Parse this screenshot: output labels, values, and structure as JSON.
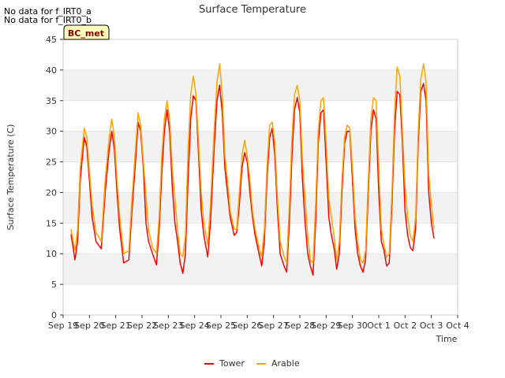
{
  "notes": [
    "No data for f_IRT0_a",
    "No data for f_IRT0_b"
  ],
  "badge": "BC_met",
  "chart_data": {
    "type": "line",
    "title": "Surface Temperature",
    "xlabel": "Time",
    "ylabel": "Surface Temperature (C)",
    "ylim": [
      0,
      45
    ],
    "yticks": [
      0,
      5,
      10,
      15,
      20,
      25,
      30,
      35,
      40,
      45
    ],
    "xlim": [
      0,
      15
    ],
    "xticks": [
      {
        "x": 0,
        "label": "Sep 19"
      },
      {
        "x": 1,
        "label": "Sep 20"
      },
      {
        "x": 2,
        "label": "Sep 21"
      },
      {
        "x": 3,
        "label": "Sep 22"
      },
      {
        "x": 4,
        "label": "Sep 23"
      },
      {
        "x": 5,
        "label": "Sep 24"
      },
      {
        "x": 6,
        "label": "Sep 25"
      },
      {
        "x": 7,
        "label": "Sep 26"
      },
      {
        "x": 8,
        "label": "Sep 27"
      },
      {
        "x": 9,
        "label": "Sep 28"
      },
      {
        "x": 10,
        "label": "Sep 29"
      },
      {
        "x": 11,
        "label": "Sep 30"
      },
      {
        "x": 12,
        "label": "Oct 1"
      },
      {
        "x": 13,
        "label": "Oct 2"
      },
      {
        "x": 14,
        "label": "Oct 3"
      },
      {
        "x": 15,
        "label": "Oct 4"
      }
    ],
    "grid": "horizontal bands",
    "legend": "bottom-center",
    "series": [
      {
        "name": "Tower",
        "color": "#ff0000",
        "points": [
          [
            0.3,
            13.2
          ],
          [
            0.45,
            9.0
          ],
          [
            0.55,
            12.0
          ],
          [
            0.65,
            22.0
          ],
          [
            0.8,
            29.0
          ],
          [
            0.9,
            27.5
          ],
          [
            1.0,
            22.0
          ],
          [
            1.1,
            16.0
          ],
          [
            1.25,
            12.0
          ],
          [
            1.45,
            10.8
          ],
          [
            1.6,
            20.0
          ],
          [
            1.75,
            27.0
          ],
          [
            1.85,
            30.0
          ],
          [
            1.95,
            27.0
          ],
          [
            2.05,
            20.0
          ],
          [
            2.15,
            14.0
          ],
          [
            2.3,
            8.5
          ],
          [
            2.5,
            9.0
          ],
          [
            2.6,
            16.0
          ],
          [
            2.75,
            25.0
          ],
          [
            2.85,
            31.5
          ],
          [
            2.95,
            30.0
          ],
          [
            3.05,
            24.0
          ],
          [
            3.15,
            15.0
          ],
          [
            3.25,
            12.0
          ],
          [
            3.4,
            10.0
          ],
          [
            3.55,
            8.2
          ],
          [
            3.65,
            14.0
          ],
          [
            3.75,
            23.0
          ],
          [
            3.85,
            30.0
          ],
          [
            3.95,
            33.5
          ],
          [
            4.05,
            30.0
          ],
          [
            4.15,
            21.0
          ],
          [
            4.25,
            15.0
          ],
          [
            4.35,
            12.0
          ],
          [
            4.45,
            8.5
          ],
          [
            4.55,
            6.8
          ],
          [
            4.65,
            10.0
          ],
          [
            4.75,
            22.0
          ],
          [
            4.85,
            32.0
          ],
          [
            4.95,
            35.8
          ],
          [
            5.05,
            35.0
          ],
          [
            5.15,
            26.0
          ],
          [
            5.25,
            17.0
          ],
          [
            5.35,
            13.0
          ],
          [
            5.5,
            9.5
          ],
          [
            5.6,
            15.0
          ],
          [
            5.75,
            28.0
          ],
          [
            5.85,
            35.0
          ],
          [
            5.95,
            37.5
          ],
          [
            6.05,
            33.0
          ],
          [
            6.15,
            24.0
          ],
          [
            6.25,
            20.0
          ],
          [
            6.35,
            16.0
          ],
          [
            6.5,
            13.0
          ],
          [
            6.6,
            13.5
          ],
          [
            6.7,
            18.0
          ],
          [
            6.8,
            24.0
          ],
          [
            6.9,
            26.5
          ],
          [
            7.0,
            25.0
          ],
          [
            7.1,
            20.0
          ],
          [
            7.2,
            16.0
          ],
          [
            7.3,
            13.0
          ],
          [
            7.45,
            10.0
          ],
          [
            7.55,
            8.0
          ],
          [
            7.65,
            12.0
          ],
          [
            7.75,
            22.0
          ],
          [
            7.85,
            29.0
          ],
          [
            7.95,
            30.5
          ],
          [
            8.05,
            26.0
          ],
          [
            8.15,
            17.0
          ],
          [
            8.25,
            10.0
          ],
          [
            8.4,
            8.0
          ],
          [
            8.5,
            7.0
          ],
          [
            8.6,
            15.0
          ],
          [
            8.7,
            26.0
          ],
          [
            8.8,
            33.5
          ],
          [
            8.9,
            35.5
          ],
          [
            9.0,
            33.0
          ],
          [
            9.1,
            22.0
          ],
          [
            9.2,
            15.0
          ],
          [
            9.3,
            10.0
          ],
          [
            9.4,
            8.0
          ],
          [
            9.5,
            6.5
          ],
          [
            9.6,
            15.0
          ],
          [
            9.7,
            28.0
          ],
          [
            9.8,
            33.0
          ],
          [
            9.9,
            33.5
          ],
          [
            10.0,
            25.0
          ],
          [
            10.1,
            16.0
          ],
          [
            10.2,
            13.0
          ],
          [
            10.3,
            11.0
          ],
          [
            10.4,
            7.5
          ],
          [
            10.5,
            10.0
          ],
          [
            10.6,
            20.0
          ],
          [
            10.7,
            28.0
          ],
          [
            10.8,
            30.0
          ],
          [
            10.9,
            30.0
          ],
          [
            11.0,
            22.0
          ],
          [
            11.1,
            14.0
          ],
          [
            11.2,
            10.0
          ],
          [
            11.3,
            8.0
          ],
          [
            11.4,
            7.0
          ],
          [
            11.5,
            9.0
          ],
          [
            11.6,
            20.0
          ],
          [
            11.7,
            30.0
          ],
          [
            11.8,
            33.5
          ],
          [
            11.9,
            32.0
          ],
          [
            12.0,
            20.0
          ],
          [
            12.1,
            12.0
          ],
          [
            12.2,
            10.5
          ],
          [
            12.3,
            8.0
          ],
          [
            12.4,
            8.5
          ],
          [
            12.5,
            18.0
          ],
          [
            12.6,
            30.0
          ],
          [
            12.7,
            36.5
          ],
          [
            12.8,
            36.0
          ],
          [
            12.9,
            28.0
          ],
          [
            13.0,
            17.0
          ],
          [
            13.1,
            13.0
          ],
          [
            13.2,
            11.0
          ],
          [
            13.3,
            10.5
          ],
          [
            13.4,
            14.0
          ],
          [
            13.5,
            28.0
          ],
          [
            13.6,
            36.5
          ],
          [
            13.7,
            37.8
          ],
          [
            13.8,
            35.0
          ],
          [
            13.9,
            20.0
          ],
          [
            14.0,
            15.0
          ],
          [
            14.1,
            12.5
          ]
        ]
      },
      {
        "name": "Arable",
        "color": "#ffa500",
        "points": [
          [
            0.3,
            14.0
          ],
          [
            0.45,
            10.5
          ],
          [
            0.55,
            14.0
          ],
          [
            0.65,
            24.0
          ],
          [
            0.8,
            30.5
          ],
          [
            0.9,
            29.0
          ],
          [
            1.0,
            23.5
          ],
          [
            1.1,
            18.0
          ],
          [
            1.25,
            13.5
          ],
          [
            1.45,
            12.0
          ],
          [
            1.6,
            22.0
          ],
          [
            1.75,
            29.0
          ],
          [
            1.85,
            32.0
          ],
          [
            1.95,
            29.0
          ],
          [
            2.05,
            22.0
          ],
          [
            2.15,
            16.0
          ],
          [
            2.3,
            10.0
          ],
          [
            2.5,
            10.5
          ],
          [
            2.6,
            18.0
          ],
          [
            2.75,
            27.0
          ],
          [
            2.85,
            33.0
          ],
          [
            2.95,
            31.0
          ],
          [
            3.05,
            25.0
          ],
          [
            3.15,
            19.5
          ],
          [
            3.25,
            14.0
          ],
          [
            3.4,
            11.0
          ],
          [
            3.55,
            10.0
          ],
          [
            3.65,
            16.0
          ],
          [
            3.75,
            26.0
          ],
          [
            3.85,
            32.0
          ],
          [
            3.95,
            35.0
          ],
          [
            4.05,
            32.0
          ],
          [
            4.15,
            24.0
          ],
          [
            4.25,
            19.0
          ],
          [
            4.35,
            14.0
          ],
          [
            4.45,
            10.0
          ],
          [
            4.55,
            9.5
          ],
          [
            4.65,
            13.0
          ],
          [
            4.75,
            27.0
          ],
          [
            4.85,
            36.0
          ],
          [
            4.95,
            39.0
          ],
          [
            5.05,
            36.0
          ],
          [
            5.15,
            28.0
          ],
          [
            5.25,
            20.0
          ],
          [
            5.35,
            15.0
          ],
          [
            5.5,
            11.5
          ],
          [
            5.6,
            18.0
          ],
          [
            5.75,
            31.0
          ],
          [
            5.85,
            38.0
          ],
          [
            5.95,
            41.0
          ],
          [
            6.05,
            36.0
          ],
          [
            6.15,
            26.0
          ],
          [
            6.25,
            22.0
          ],
          [
            6.35,
            17.0
          ],
          [
            6.5,
            14.0
          ],
          [
            6.6,
            14.0
          ],
          [
            6.7,
            20.0
          ],
          [
            6.8,
            26.0
          ],
          [
            6.9,
            28.5
          ],
          [
            7.0,
            26.0
          ],
          [
            7.1,
            22.0
          ],
          [
            7.2,
            17.0
          ],
          [
            7.3,
            14.0
          ],
          [
            7.45,
            11.0
          ],
          [
            7.55,
            9.5
          ],
          [
            7.65,
            14.0
          ],
          [
            7.75,
            24.0
          ],
          [
            7.85,
            31.0
          ],
          [
            7.95,
            31.5
          ],
          [
            8.05,
            28.0
          ],
          [
            8.15,
            19.0
          ],
          [
            8.25,
            12.0
          ],
          [
            8.4,
            9.5
          ],
          [
            8.5,
            8.5
          ],
          [
            8.6,
            18.0
          ],
          [
            8.7,
            29.0
          ],
          [
            8.8,
            36.0
          ],
          [
            8.9,
            37.5
          ],
          [
            9.0,
            35.0
          ],
          [
            9.1,
            25.0
          ],
          [
            9.2,
            19.0
          ],
          [
            9.3,
            13.0
          ],
          [
            9.4,
            9.0
          ],
          [
            9.5,
            8.5
          ],
          [
            9.6,
            18.0
          ],
          [
            9.7,
            30.0
          ],
          [
            9.8,
            35.0
          ],
          [
            9.9,
            35.5
          ],
          [
            10.0,
            28.0
          ],
          [
            10.1,
            19.0
          ],
          [
            10.2,
            16.0
          ],
          [
            10.3,
            13.0
          ],
          [
            10.4,
            9.0
          ],
          [
            10.5,
            12.0
          ],
          [
            10.6,
            22.0
          ],
          [
            10.7,
            29.0
          ],
          [
            10.8,
            31.0
          ],
          [
            10.9,
            30.5
          ],
          [
            11.0,
            24.0
          ],
          [
            11.1,
            16.0
          ],
          [
            11.2,
            12.0
          ],
          [
            11.3,
            9.0
          ],
          [
            11.4,
            8.5
          ],
          [
            11.5,
            10.5
          ],
          [
            11.6,
            22.0
          ],
          [
            11.7,
            32.0
          ],
          [
            11.8,
            35.5
          ],
          [
            11.9,
            35.0
          ],
          [
            12.0,
            24.0
          ],
          [
            12.1,
            14.0
          ],
          [
            12.2,
            11.5
          ],
          [
            12.3,
            9.5
          ],
          [
            12.4,
            10.0
          ],
          [
            12.5,
            20.0
          ],
          [
            12.6,
            33.0
          ],
          [
            12.7,
            40.5
          ],
          [
            12.8,
            39.0
          ],
          [
            12.9,
            30.0
          ],
          [
            13.0,
            21.0
          ],
          [
            13.1,
            16.0
          ],
          [
            13.2,
            13.0
          ],
          [
            13.3,
            12.0
          ],
          [
            13.4,
            16.0
          ],
          [
            13.5,
            30.0
          ],
          [
            13.6,
            38.5
          ],
          [
            13.7,
            41.0
          ],
          [
            13.8,
            38.0
          ],
          [
            13.9,
            23.0
          ],
          [
            14.0,
            18.0
          ],
          [
            14.1,
            14.0
          ]
        ]
      }
    ]
  }
}
